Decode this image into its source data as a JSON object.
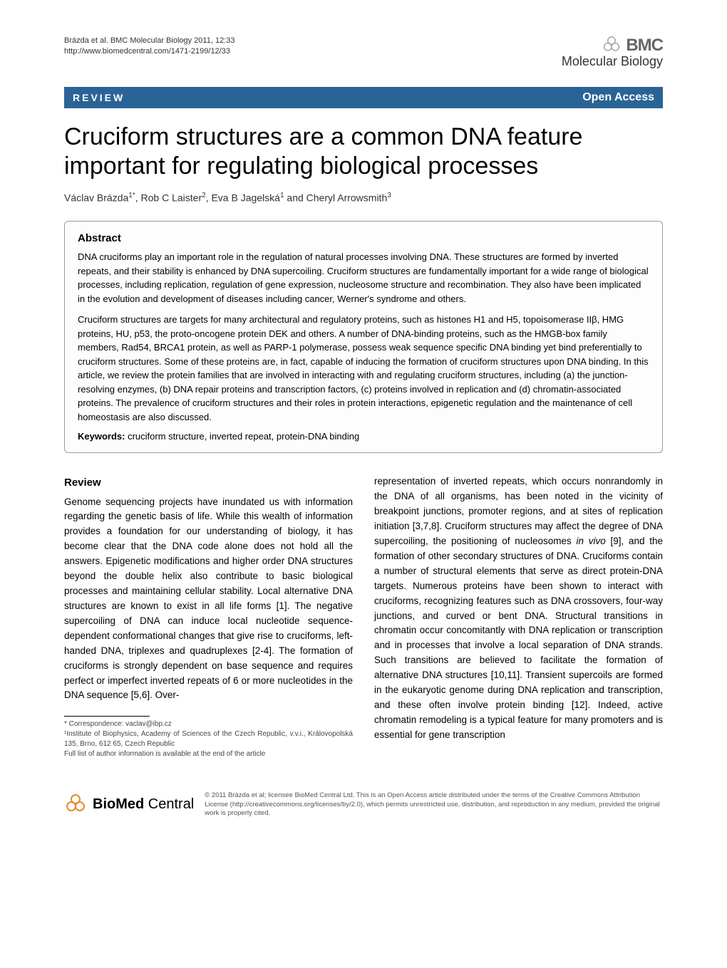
{
  "header": {
    "citation_line1": "Brázda et al. BMC Molecular Biology 2011, 12:33",
    "citation_line2": "http://www.biomedcentral.com/1471-2199/12/33",
    "journal_bmc": "BMC",
    "journal_name": "Molecular Biology"
  },
  "review_bar": {
    "label": "REVIEW",
    "open_access": "Open Access"
  },
  "title": "Cruciform structures are a common DNA feature important for regulating biological processes",
  "authors_html": "Václav Brázda<sup>1*</sup>, Rob C Laister<sup>2</sup>, Eva B Jagelská<sup>1</sup> and Cheryl Arrowsmith<sup>3</sup>",
  "abstract": {
    "heading": "Abstract",
    "p1": "DNA cruciforms play an important role in the regulation of natural processes involving DNA. These structures are formed by inverted repeats, and their stability is enhanced by DNA supercoiling. Cruciform structures are fundamentally important for a wide range of biological processes, including replication, regulation of gene expression, nucleosome structure and recombination. They also have been implicated in the evolution and development of diseases including cancer, Werner's syndrome and others.",
    "p2": "Cruciform structures are targets for many architectural and regulatory proteins, such as histones H1 and H5, topoisomerase IIβ, HMG proteins, HU, p53, the proto-oncogene protein DEK and others. A number of DNA-binding proteins, such as the HMGB-box family members, Rad54, BRCA1 protein, as well as PARP-1 polymerase, possess weak sequence specific DNA binding yet bind preferentially to cruciform structures. Some of these proteins are, in fact, capable of inducing the formation of cruciform structures upon DNA binding. In this article, we review the protein families that are involved in interacting with and regulating cruciform structures, including (a) the junction-resolving enzymes, (b) DNA repair proteins and transcription factors, (c) proteins involved in replication and (d) chromatin-associated proteins. The prevalence of cruciform structures and their roles in protein interactions, epigenetic regulation and the maintenance of cell homeostasis are also discussed.",
    "keywords_label": "Keywords:",
    "keywords": " cruciform structure, inverted repeat, protein-DNA binding"
  },
  "body": {
    "review_heading": "Review",
    "left": "Genome sequencing projects have inundated us with information regarding the genetic basis of life. While this wealth of information provides a foundation for our understanding of biology, it has become clear that the DNA code alone does not hold all the answers. Epigenetic modifications and higher order DNA structures beyond the double helix also contribute to basic biological processes and maintaining cellular stability. Local alternative DNA structures are known to exist in all life forms [1]. The negative supercoiling of DNA can induce local nucleotide sequence-dependent conformational changes that give rise to cruciforms, left-handed DNA, triplexes and quadruplexes [2-4]. The formation of cruciforms is strongly dependent on base sequence and requires perfect or imperfect inverted repeats of 6 or more nucleotides in the DNA sequence [5,6]. Over-",
    "right": "representation of inverted repeats, which occurs nonrandomly in the DNA of all organisms, has been noted in the vicinity of breakpoint junctions, promoter regions, and at sites of replication initiation [3,7,8]. Cruciform structures may affect the degree of DNA supercoiling, the positioning of nucleosomes in vivo [9], and the formation of other secondary structures of DNA. Cruciforms contain a number of structural elements that serve as direct protein-DNA targets. Numerous proteins have been shown to interact with cruciforms, recognizing features such as DNA crossovers, four-way junctions, and curved or bent DNA. Structural transitions in chromatin occur concomitantly with DNA replication or transcription and in processes that involve a local separation of DNA strands. Such transitions are believed to facilitate the formation of alternative DNA structures [10,11]. Transient supercoils are formed in the eukaryotic genome during DNA replication and transcription, and these often involve protein binding [12]. Indeed, active chromatin remodeling is a typical feature for many promoters and is essential for gene transcription"
  },
  "footnotes": {
    "correspondence": "* Correspondence: vaclav@ibp.cz",
    "affiliation": "¹Institute of Biophysics, Academy of Sciences of the Czech Republic, v.v.i., Královopolská 135, Brno, 612 65, Czech Republic",
    "full_list": "Full list of author information is available at the end of the article"
  },
  "footer": {
    "logo_text": "BioMed Central",
    "license": "© 2011 Brázda et al; licensee BioMed Central Ltd. This is an Open Access article distributed under the terms of the Creative Commons Attribution License (http://creativecommons.org/licenses/by/2.0), which permits unrestricted use, distribution, and reproduction in any medium, provided the original work is properly cited."
  },
  "colors": {
    "review_bar_bg": "#2a6496",
    "review_bar_text": "#ffffff",
    "bmc_petal": "#e58b2c",
    "body_text": "#000000"
  }
}
